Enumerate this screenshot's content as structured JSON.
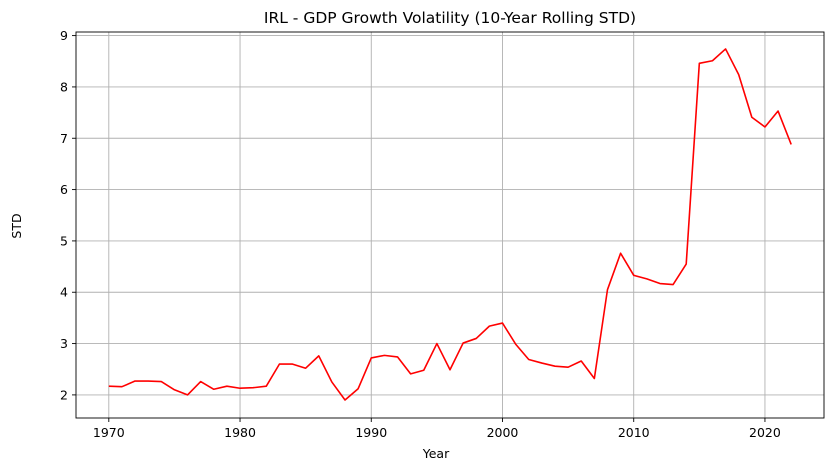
{
  "chart_data": {
    "type": "line",
    "title": "IRL - GDP Growth Volatility (10-Year Rolling STD)",
    "xlabel": "Year",
    "ylabel": "STD",
    "xlim": [
      1967.5,
      2024.5
    ],
    "ylim": [
      1.55,
      9.07
    ],
    "xticks": [
      1970,
      1980,
      1990,
      2000,
      2010,
      2020
    ],
    "yticks": [
      2,
      3,
      4,
      5,
      6,
      7,
      8,
      9
    ],
    "grid": true,
    "series": [
      {
        "color": "#ff0000",
        "x": [
          1970,
          1971,
          1972,
          1973,
          1974,
          1975,
          1976,
          1977,
          1978,
          1979,
          1980,
          1981,
          1982,
          1983,
          1984,
          1985,
          1986,
          1987,
          1988,
          1989,
          1990,
          1991,
          1992,
          1993,
          1994,
          1995,
          1996,
          1997,
          1998,
          1999,
          2000,
          2001,
          2002,
          2003,
          2004,
          2005,
          2006,
          2007,
          2008,
          2009,
          2010,
          2011,
          2012,
          2013,
          2014,
          2015,
          2016,
          2017,
          2018,
          2019,
          2020,
          2021,
          2022
        ],
        "y": [
          2.17,
          2.16,
          2.27,
          2.27,
          2.26,
          2.1,
          2.0,
          2.26,
          2.11,
          2.17,
          2.13,
          2.14,
          2.17,
          2.6,
          2.6,
          2.52,
          2.76,
          2.25,
          1.9,
          2.12,
          2.72,
          2.77,
          2.74,
          2.41,
          2.48,
          3.0,
          2.49,
          3.01,
          3.1,
          3.34,
          3.4,
          2.99,
          2.69,
          2.62,
          2.56,
          2.54,
          2.66,
          2.32,
          4.05,
          4.76,
          4.33,
          4.26,
          4.17,
          4.15,
          4.55,
          8.46,
          8.51,
          8.74,
          8.24,
          7.41,
          7.22,
          7.53,
          6.88
        ]
      }
    ]
  }
}
